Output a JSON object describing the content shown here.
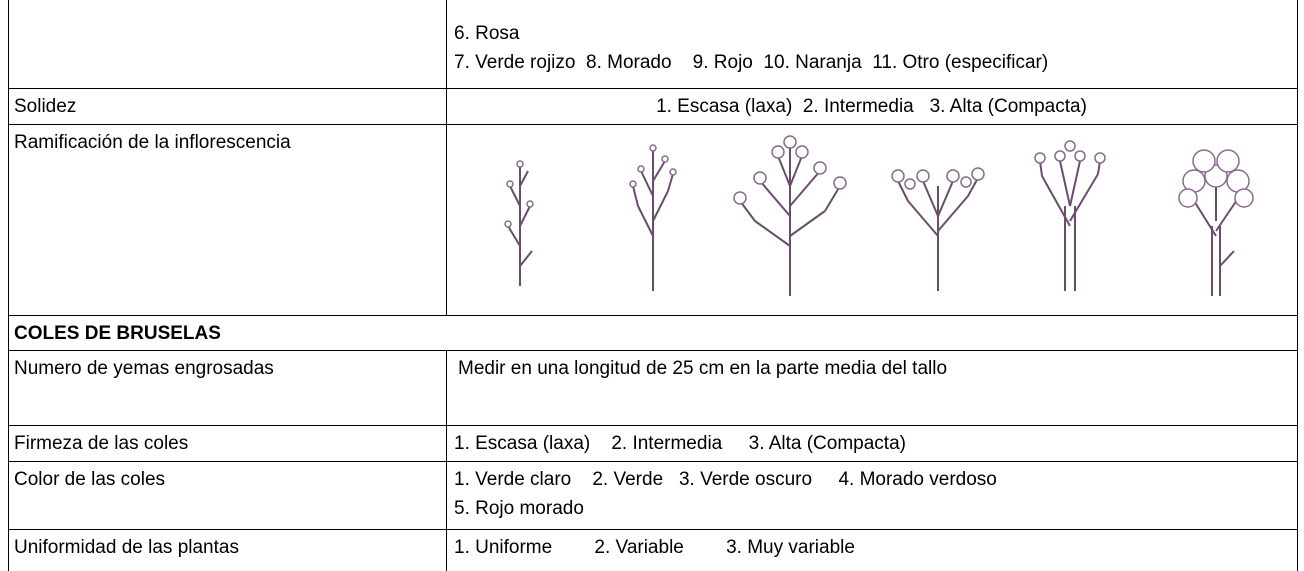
{
  "table": {
    "rows": [
      {
        "lines": [
          "6. Rosa",
          "7. Verde rojizo  8. Morado    9. Rojo  10. Naranja  11. Otro (especificar)"
        ]
      },
      {
        "label": "Solidez",
        "lines": [
          "1. Escasa (laxa)  2. Intermedia   3. Alta (Compacta)"
        ]
      },
      {
        "label": "Ramificación de la inflorescencia"
      },
      {
        "section": "COLES DE BRUSELAS"
      },
      {
        "label": "Numero de yemas engrosadas",
        "lines": [
          "Medir en una longitud de 25 cm en la parte media del tallo"
        ]
      },
      {
        "label": "Firmeza de las coles",
        "lines": [
          "1. Escasa (laxa)    2. Intermedia     3. Alta (Compacta)"
        ]
      },
      {
        "label": "Color de las coles",
        "lines": [
          "1. Verde claro    2. Verde   3. Verde oscuro     4. Morado verdoso",
          "5. Rojo morado"
        ]
      },
      {
        "label": "Uniformidad de las plantas",
        "lines": [
          "1. Uniforme        2. Variable        3. Muy variable"
        ]
      }
    ]
  }
}
